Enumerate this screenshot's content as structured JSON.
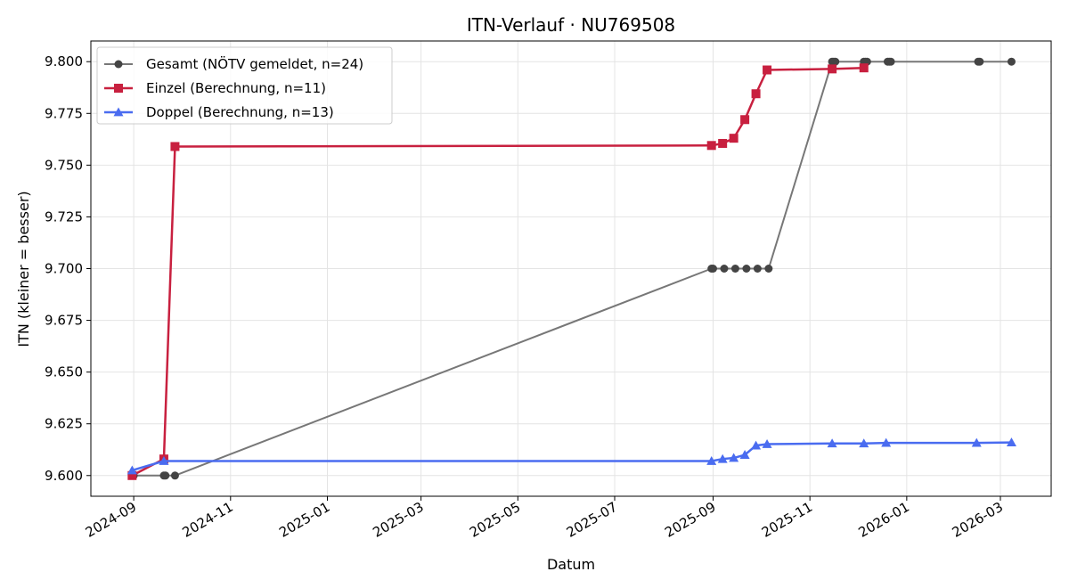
{
  "chart_data": {
    "type": "line",
    "title": "ITN-Verlauf · NU769508",
    "xlabel": "Datum",
    "ylabel": "ITN  (kleiner = besser)",
    "x_type": "date",
    "xlim": [
      "2024-08-05",
      "2026-04-02"
    ],
    "ylim": [
      9.59,
      9.81
    ],
    "x_ticks": [
      "2024-09",
      "2024-11",
      "2025-01",
      "2025-03",
      "2025-05",
      "2025-07",
      "2025-09",
      "2025-11",
      "2026-01",
      "2026-03"
    ],
    "y_ticks": [
      9.6,
      9.625,
      9.65,
      9.675,
      9.7,
      9.725,
      9.75,
      9.775,
      9.8
    ],
    "y_tick_labels": [
      "9.600",
      "9.625",
      "9.650",
      "9.675",
      "9.700",
      "9.725",
      "9.750",
      "9.775",
      "9.800"
    ],
    "grid": true,
    "legend_position": "top-left",
    "series": [
      {
        "name": "Gesamt (NÖTV gemeldet, n=24)",
        "color": "#444444",
        "line_color": "#777777",
        "marker": "circle",
        "points": [
          [
            "2024-08-31",
            9.6
          ],
          [
            "2024-09-01",
            9.6
          ],
          [
            "2024-09-20",
            9.6
          ],
          [
            "2024-09-21",
            9.6
          ],
          [
            "2024-09-27",
            9.6
          ],
          [
            "2025-08-31",
            9.7
          ],
          [
            "2025-09-01",
            9.7
          ],
          [
            "2025-09-08",
            9.7
          ],
          [
            "2025-09-15",
            9.7
          ],
          [
            "2025-09-22",
            9.7
          ],
          [
            "2025-09-29",
            9.7
          ],
          [
            "2025-10-06",
            9.7
          ],
          [
            "2025-11-15",
            9.8
          ],
          [
            "2025-11-16",
            9.8
          ],
          [
            "2025-11-17",
            9.8
          ],
          [
            "2025-12-05",
            9.8
          ],
          [
            "2025-12-06",
            9.8
          ],
          [
            "2025-12-07",
            9.8
          ],
          [
            "2025-12-20",
            9.8
          ],
          [
            "2025-12-21",
            9.8
          ],
          [
            "2025-12-22",
            9.8
          ],
          [
            "2026-02-15",
            9.8
          ],
          [
            "2026-02-16",
            9.8
          ],
          [
            "2026-03-08",
            9.8
          ]
        ]
      },
      {
        "name": "Einzel (Berechnung, n=11)",
        "color": "#c8203f",
        "marker": "square",
        "points": [
          [
            "2024-08-31",
            9.6
          ],
          [
            "2024-09-20",
            9.608
          ],
          [
            "2024-09-27",
            9.759
          ],
          [
            "2025-08-31",
            9.7595
          ],
          [
            "2025-09-07",
            9.7605
          ],
          [
            "2025-09-14",
            9.763
          ],
          [
            "2025-09-21",
            9.772
          ],
          [
            "2025-09-28",
            9.7845
          ],
          [
            "2025-10-05",
            9.796
          ],
          [
            "2025-11-15",
            9.7965
          ],
          [
            "2025-12-05",
            9.797
          ]
        ]
      },
      {
        "name": "Doppel (Berechnung, n=13)",
        "color": "#4a6cf0",
        "marker": "triangle",
        "points": [
          [
            "2024-08-31",
            9.6025
          ],
          [
            "2024-09-20",
            9.607
          ],
          [
            "2025-08-31",
            9.607
          ],
          [
            "2025-09-07",
            9.608
          ],
          [
            "2025-09-14",
            9.6085
          ],
          [
            "2025-09-21",
            9.61
          ],
          [
            "2025-09-28",
            9.6145
          ],
          [
            "2025-10-05",
            9.6152
          ],
          [
            "2025-11-15",
            9.6155
          ],
          [
            "2025-12-05",
            9.6155
          ],
          [
            "2025-12-19",
            9.6158
          ],
          [
            "2026-02-14",
            9.6158
          ],
          [
            "2026-03-08",
            9.616
          ]
        ]
      }
    ]
  }
}
